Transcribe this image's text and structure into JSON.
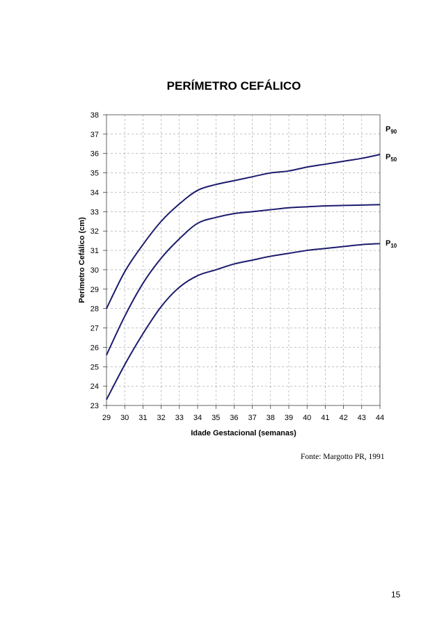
{
  "chart_data": {
    "type": "line",
    "title": "PERÍMETRO CEFÁLICO",
    "xlabel": "Idade Gestacional (semanas)",
    "ylabel": "Perímetro Cefálico (cm)",
    "xlim": [
      29,
      44
    ],
    "ylim": [
      23,
      38
    ],
    "x_ticks": [
      29,
      30,
      31,
      32,
      33,
      34,
      35,
      36,
      37,
      38,
      39,
      40,
      41,
      42,
      43,
      44
    ],
    "y_ticks": [
      23,
      24,
      25,
      26,
      27,
      28,
      29,
      30,
      31,
      32,
      33,
      34,
      35,
      36,
      37,
      38
    ],
    "grid": true,
    "line_color": "#1a1a6e",
    "x": [
      29,
      30,
      31,
      32,
      33,
      34,
      35,
      36,
      37,
      38,
      39,
      40,
      41,
      42,
      43,
      44
    ],
    "series": [
      {
        "name": "P90",
        "label_main": "P",
        "label_sub": "90",
        "values": [
          28.0,
          29.9,
          31.3,
          32.5,
          33.4,
          34.1,
          34.4,
          34.6,
          34.8,
          35.0,
          35.1,
          35.3,
          35.45,
          35.6,
          35.75,
          35.95
        ]
      },
      {
        "name": "P50",
        "label_main": "P",
        "label_sub": "50",
        "values": [
          25.6,
          27.6,
          29.3,
          30.6,
          31.6,
          32.4,
          32.7,
          32.9,
          33.0,
          33.1,
          33.2,
          33.25,
          33.3,
          33.32,
          33.34,
          33.36
        ]
      },
      {
        "name": "P10",
        "label_main": "P",
        "label_sub": "10",
        "values": [
          23.3,
          25.1,
          26.7,
          28.1,
          29.1,
          29.7,
          30.0,
          30.3,
          30.5,
          30.7,
          30.85,
          31.0,
          31.1,
          31.2,
          31.3,
          31.35
        ]
      }
    ]
  },
  "footer": {
    "source": "Fonte: Margotto PR, 1991",
    "page_number": "15"
  }
}
